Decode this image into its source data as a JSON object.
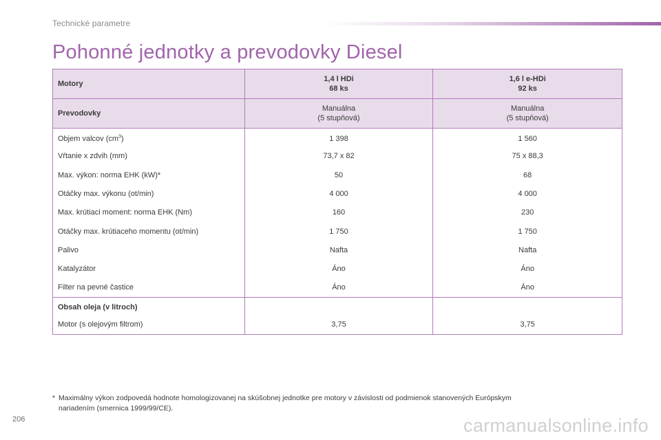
{
  "header": {
    "section_label": "Technické parametre",
    "accent_color": "#a064aa"
  },
  "page_title": "Pohonné jednotky a prevodovky Diesel",
  "table": {
    "engines_label": "Motory",
    "engines": [
      {
        "name": "1,4 l HDi",
        "power": "68 ks"
      },
      {
        "name": "1,6 l e-HDi",
        "power": "92 ks"
      }
    ],
    "gearbox_label": "Prevodovky",
    "gearboxes": [
      {
        "type": "Manuálna",
        "gears": "(5 stupňová)"
      },
      {
        "type": "Manuálna",
        "gears": "(5 stupňová)"
      }
    ],
    "rows": [
      {
        "label": "Objem valcov (cm",
        "label_sup": "3",
        "label_after": ")",
        "values": [
          "1 398",
          "1 560"
        ]
      },
      {
        "label": "Vŕtanie x zdvih (mm)",
        "values": [
          "73,7 x 82",
          "75 x 88,3"
        ]
      },
      {
        "label": "Max. výkon: norma EHK (kW)*",
        "values": [
          "50",
          "68"
        ]
      },
      {
        "label": "Otáčky max. výkonu (ot/min)",
        "values": [
          "4 000",
          "4 000"
        ]
      },
      {
        "label": "Max. krútiaci moment: norma EHK (Nm)",
        "values": [
          "160",
          "230"
        ]
      },
      {
        "label": "Otáčky max. krútiaceho momentu (ot/min)",
        "values": [
          "1 750",
          "1 750"
        ]
      },
      {
        "label": "Palivo",
        "values": [
          "Nafta",
          "Nafta"
        ]
      },
      {
        "label": "Katalyzátor",
        "values": [
          "Áno",
          "Áno"
        ]
      },
      {
        "label": "Filter na pevné častice",
        "values": [
          "Áno",
          "Áno"
        ]
      }
    ],
    "oil_title": "Obsah oleja (v litroch)",
    "oil_row": {
      "label": "Motor (s olejovým filtrom)",
      "values": [
        "3,75",
        "3,75"
      ]
    }
  },
  "footnote": {
    "marker": "*",
    "line1": "Maximálny výkon zodpovedá hodnote homologizovanej na skúšobnej jednotke pre motory v závislosti od podmienok stanovených Európskym",
    "line2": "nariadením (smernica 1999/99/CE)."
  },
  "page_number": "206",
  "watermark": "carmanualsonline.info"
}
